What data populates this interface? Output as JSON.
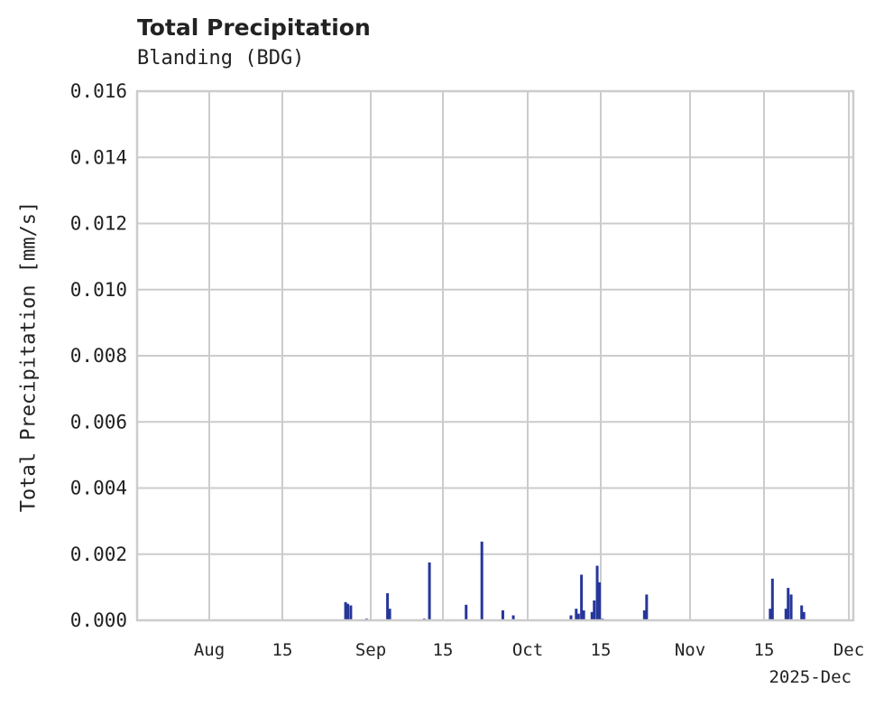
{
  "chart_data": {
    "type": "bar",
    "title": "Total Precipitation",
    "subtitle": "Blanding (BDG)",
    "xlabel": "",
    "ylabel": "Total Precipitation [mm/s]",
    "ylim": [
      0,
      0.016
    ],
    "yticks": [
      "0.000",
      "0.002",
      "0.004",
      "0.006",
      "0.008",
      "0.010",
      "0.012",
      "0.014",
      "0.016"
    ],
    "xticks": [
      "Aug",
      "15",
      "Sep",
      "15",
      "Oct",
      "15",
      "Nov",
      "15",
      "Dec"
    ],
    "x_offset_label": "2025-Dec",
    "grid": true,
    "color": "#26369a",
    "x": [
      "2025-08-27",
      "2025-08-27b",
      "2025-08-28",
      "2025-08-31",
      "2025-09-04",
      "2025-09-04b",
      "2025-09-11",
      "2025-09-12",
      "2025-09-19",
      "2025-09-22",
      "2025-09-26",
      "2025-09-28",
      "2025-10-09",
      "2025-10-10",
      "2025-10-10b",
      "2025-10-11",
      "2025-10-11b",
      "2025-10-13",
      "2025-10-13b",
      "2025-10-14",
      "2025-10-14b",
      "2025-10-15",
      "2025-10-23",
      "2025-10-23b",
      "2025-11-16",
      "2025-11-16b",
      "2025-11-19",
      "2025-11-19b",
      "2025-11-20",
      "2025-11-22",
      "2025-11-22b"
    ],
    "values": [
      0.00055,
      0.0005,
      0.00045,
      5e-05,
      0.00082,
      0.00035,
      5e-05,
      0.00175,
      0.00047,
      0.00238,
      0.0003,
      0.00015,
      0.00015,
      0.00035,
      0.0002,
      0.00138,
      0.0003,
      0.00025,
      0.0006,
      0.00165,
      0.00115,
      5e-05,
      0.0003,
      0.00078,
      0.00035,
      0.00126,
      0.00035,
      0.00098,
      0.00078,
      0.00045,
      0.00025
    ]
  }
}
